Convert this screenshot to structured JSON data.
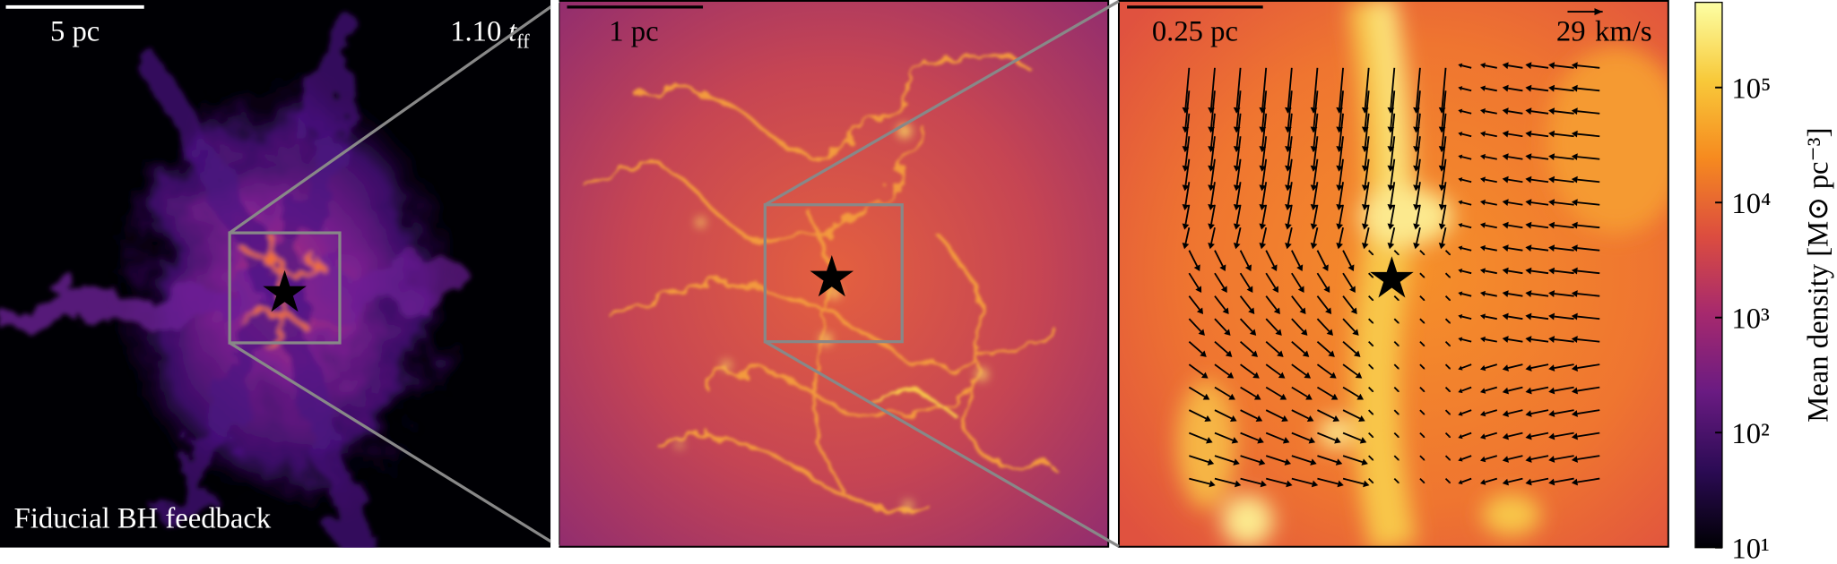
{
  "chart_data": {
    "type": "image",
    "panels": [
      {
        "scale_bar": "5 pc",
        "time": {
          "value": "1.10",
          "symbol": "t",
          "subscript": "ff"
        },
        "label": "Fiducial BH feedback"
      },
      {
        "scale_bar": "1 pc"
      },
      {
        "scale_bar": "0.25 pc",
        "velocity_key": {
          "value": "29",
          "unit": "km/s"
        }
      }
    ],
    "colorbar": {
      "label": "Mean density [M⊙ pc⁻³]",
      "log_scale": true,
      "ylim": [
        10,
        550000
      ],
      "yticks": [
        {
          "value": 10,
          "label": "10¹"
        },
        {
          "value": 100,
          "label": "10²"
        },
        {
          "value": 1000,
          "label": "10³"
        },
        {
          "value": 10000,
          "label": "10⁴"
        },
        {
          "value": 100000,
          "label": "10⁵"
        }
      ],
      "colormap": [
        "#000004",
        "#2c0b55",
        "#6a1b82",
        "#a6296e",
        "#dc4d3f",
        "#f68a1f",
        "#f8c93a",
        "#fcffa4"
      ]
    }
  }
}
